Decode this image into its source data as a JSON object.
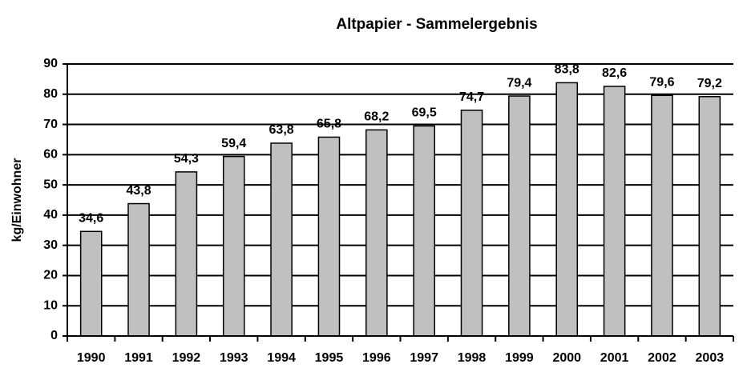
{
  "chart_data": {
    "type": "bar",
    "title": "Altpapier - Sammelergebnis",
    "y_label": "kg/Einwohner",
    "categories": [
      "1990",
      "1991",
      "1992",
      "1993",
      "1994",
      "1995",
      "1996",
      "1997",
      "1998",
      "1999",
      "2000",
      "2001",
      "2002",
      "2003"
    ],
    "values": [
      34.6,
      43.8,
      54.3,
      59.4,
      63.8,
      65.8,
      68.2,
      69.5,
      74.7,
      79.4,
      83.8,
      82.6,
      79.6,
      79.2
    ],
    "value_labels": [
      "34,6",
      "43,8",
      "54,3",
      "59,4",
      "63,8",
      "65,8",
      "68,2",
      "69,5",
      "74,7",
      "79,4",
      "83,8",
      "82,6",
      "79,6",
      "79,2"
    ],
    "color": "#c0c0c0",
    "ylim": [
      0,
      90
    ],
    "yticks": [
      0,
      10,
      20,
      30,
      40,
      50,
      60,
      70,
      80,
      90
    ],
    "grid": true
  }
}
